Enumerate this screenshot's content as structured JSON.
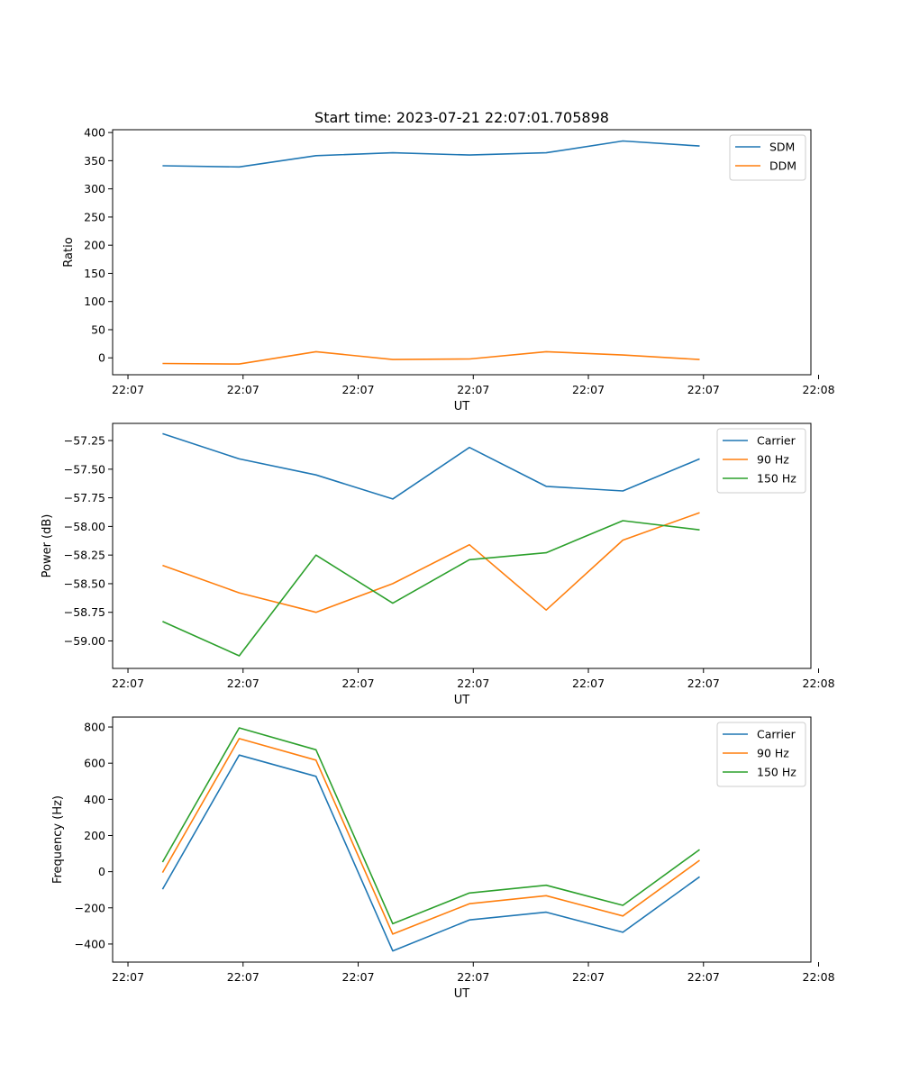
{
  "figure_title": "Start time: 2023-07-21 22:07:01.705898",
  "chart_data": [
    {
      "type": "line",
      "title": "Start time: 2023-07-21 22:07:01.705898",
      "xlabel": "UT",
      "ylabel": "Ratio",
      "xlim": [
        -0.65,
        8.45
      ],
      "ylim": [
        -30,
        405
      ],
      "yticks": [
        0,
        50,
        100,
        150,
        200,
        250,
        300,
        350,
        400
      ],
      "ytick_labels": [
        "0",
        "50",
        "100",
        "150",
        "200",
        "250",
        "300",
        "350",
        "400"
      ],
      "xticks": [
        -0.45,
        1.05,
        2.55,
        4.05,
        5.55,
        7.05,
        8.55
      ],
      "xtick_labels": [
        "22:07",
        "22:07",
        "22:07",
        "22:07",
        "22:07",
        "22:07",
        "22:08"
      ],
      "legend_position": "upper-right",
      "x": [
        0,
        1,
        2,
        3,
        4,
        5,
        6,
        7
      ],
      "series": [
        {
          "name": "SDM",
          "color": "#1f77b4",
          "values": [
            341,
            339,
            359,
            364,
            360,
            364,
            385,
            376
          ]
        },
        {
          "name": "DDM",
          "color": "#ff7f0e",
          "values": [
            -10,
            -11,
            11,
            -3,
            -2,
            11,
            5,
            -3
          ]
        }
      ]
    },
    {
      "type": "line",
      "title": "",
      "xlabel": "UT",
      "ylabel": "Power (dB)",
      "xlim": [
        -0.65,
        8.45
      ],
      "ylim": [
        -59.24,
        -57.1
      ],
      "yticks": [
        -59.0,
        -58.75,
        -58.5,
        -58.25,
        -58.0,
        -57.75,
        -57.5,
        -57.25
      ],
      "ytick_labels": [
        "−59.00",
        "−58.75",
        "−58.50",
        "−58.25",
        "−58.00",
        "−57.75",
        "−57.50",
        "−57.25"
      ],
      "xticks": [
        -0.45,
        1.05,
        2.55,
        4.05,
        5.55,
        7.05,
        8.55
      ],
      "xtick_labels": [
        "22:07",
        "22:07",
        "22:07",
        "22:07",
        "22:07",
        "22:07",
        "22:08"
      ],
      "legend_position": "upper-right",
      "x": [
        0,
        1,
        2,
        3,
        4,
        5,
        6,
        7
      ],
      "series": [
        {
          "name": "Carrier",
          "color": "#1f77b4",
          "values": [
            -57.19,
            -57.41,
            -57.55,
            -57.76,
            -57.31,
            -57.65,
            -57.69,
            -57.41
          ]
        },
        {
          "name": "90 Hz",
          "color": "#ff7f0e",
          "values": [
            -58.34,
            -58.58,
            -58.75,
            -58.5,
            -58.16,
            -58.73,
            -58.12,
            -57.88
          ]
        },
        {
          "name": "150 Hz",
          "color": "#2ca02c",
          "values": [
            -58.83,
            -59.13,
            -58.25,
            -58.67,
            -58.29,
            -58.23,
            -57.95,
            -58.03
          ]
        }
      ]
    },
    {
      "type": "line",
      "title": "",
      "xlabel": "UT",
      "ylabel": "Frequency (Hz)",
      "xlim": [
        -0.65,
        8.45
      ],
      "ylim": [
        -500,
        855
      ],
      "yticks": [
        -400,
        -200,
        0,
        200,
        400,
        600,
        800
      ],
      "ytick_labels": [
        "−400",
        "−200",
        "0",
        "200",
        "400",
        "600",
        "800"
      ],
      "xticks": [
        -0.45,
        1.05,
        2.55,
        4.05,
        5.55,
        7.05,
        8.55
      ],
      "xtick_labels": [
        "22:07",
        "22:07",
        "22:07",
        "22:07",
        "22:07",
        "22:07",
        "22:08"
      ],
      "legend_position": "upper-right",
      "x": [
        0,
        1,
        2,
        3,
        4,
        5,
        6,
        7
      ],
      "series": [
        {
          "name": "Carrier",
          "color": "#1f77b4",
          "values": [
            -97,
            645,
            527,
            -438,
            -267,
            -224,
            -335,
            -28
          ]
        },
        {
          "name": "90 Hz",
          "color": "#ff7f0e",
          "values": [
            -5,
            736,
            617,
            -345,
            -177,
            -133,
            -245,
            63
          ]
        },
        {
          "name": "150 Hz",
          "color": "#2ca02c",
          "values": [
            53,
            795,
            674,
            -288,
            -118,
            -75,
            -186,
            122
          ]
        }
      ]
    }
  ]
}
